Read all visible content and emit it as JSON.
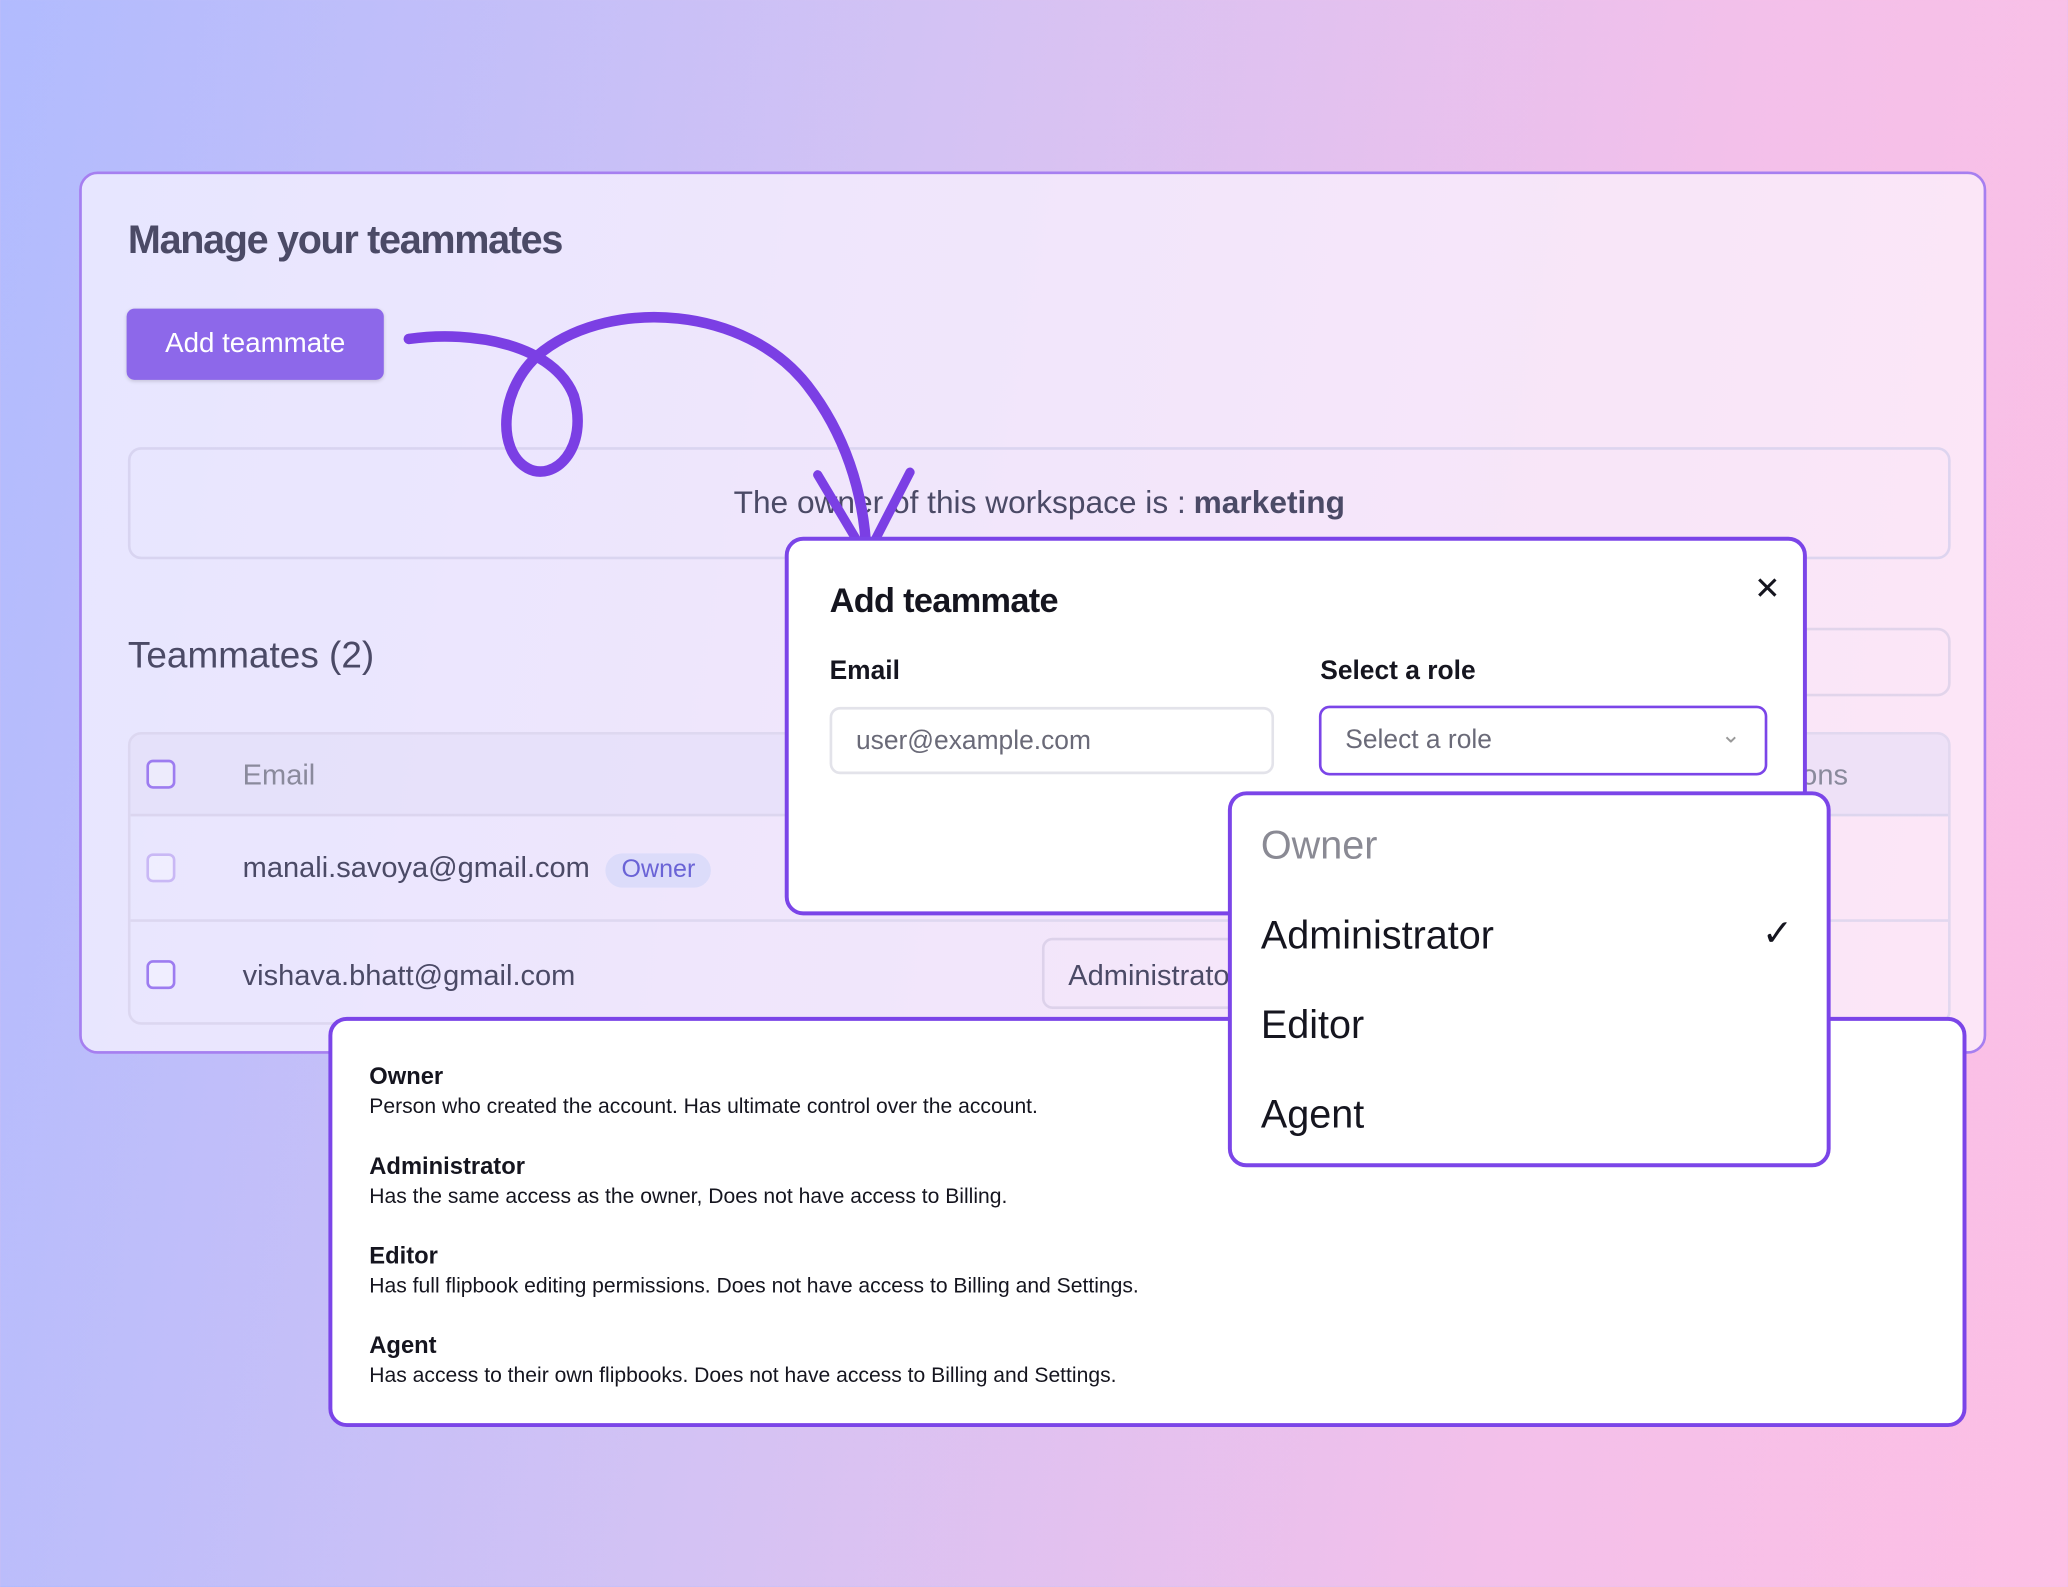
{
  "page": {
    "title": "Manage your teammates",
    "add_button": "Add teammate",
    "owner_text": "The owner of this workspace is :",
    "owner_name": "marketing",
    "teammates_heading": "Teammates (2)"
  },
  "table": {
    "headers": {
      "email": "Email",
      "actions": "Actions"
    },
    "rows": [
      {
        "email": "manali.savoya@gmail.com",
        "badge": "Owner"
      },
      {
        "email": "vishava.bhatt@gmail.com",
        "role": "Administrator"
      }
    ]
  },
  "modal": {
    "title": "Add teammate",
    "email_label": "Email",
    "email_placeholder": "user@example.com",
    "role_label": "Select a role",
    "role_placeholder": "Select a role"
  },
  "dropdown": {
    "options": [
      {
        "label": "Owner",
        "disabled": true
      },
      {
        "label": "Administrator",
        "selected": true
      },
      {
        "label": "Editor"
      },
      {
        "label": "Agent"
      }
    ]
  },
  "roles": [
    {
      "name": "Owner",
      "desc": "Person who created the account. Has ultimate control over the account."
    },
    {
      "name": "Administrator",
      "desc": "Has the same access as the owner, Does not have access to Billing."
    },
    {
      "name": "Editor",
      "desc": "Has full flipbook editing permissions. Does not have access to Billing and Settings."
    },
    {
      "name": "Agent",
      "desc": "Has access to their own flipbooks. Does not have access to Billing and Settings."
    }
  ],
  "colors": {
    "accent": "#7b45e8",
    "button": "#8d68ea"
  }
}
